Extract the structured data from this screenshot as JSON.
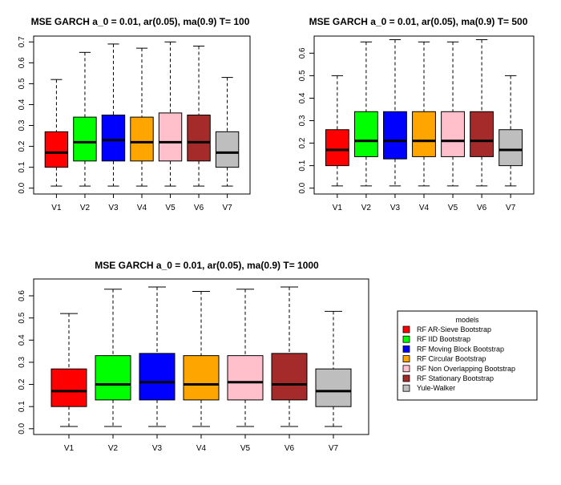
{
  "colors": {
    "V1": "#ff0000",
    "V2": "#00ff00",
    "V3": "#0000ff",
    "V4": "#ffa500",
    "V5": "#ffc0cb",
    "V6": "#a52a2a",
    "V7": "#bebebe"
  },
  "legend": {
    "title": "models",
    "placement": "right-middle",
    "items": [
      {
        "label": "RF AR-Sieve Bootstrap",
        "color": "#ff0000"
      },
      {
        "label": "RF IID Bootstrap",
        "color": "#00ff00"
      },
      {
        "label": "RF Moving Block Bootstrap",
        "color": "#0000ff"
      },
      {
        "label": "RF Circular Bootstrap",
        "color": "#ffa500"
      },
      {
        "label": "RF Non Overlapping Bootstrap",
        "color": "#ffc0cb"
      },
      {
        "label": "RF Stationary Bootstrap",
        "color": "#a52a2a"
      },
      {
        "label": "Yule-Walker",
        "color": "#bebebe"
      }
    ]
  },
  "chart_data": [
    {
      "type": "boxplot",
      "title": "MSE GARCH a_0 = 0.01, ar(0.05), ma(0.9)  T= 100",
      "categories": [
        "V1",
        "V2",
        "V3",
        "V4",
        "V5",
        "V6",
        "V7"
      ],
      "ylim": [
        0,
        0.7
      ],
      "yticks": [
        "0.0",
        "0.1",
        "0.2",
        "0.3",
        "0.4",
        "0.5",
        "0.6",
        "0.7"
      ],
      "boxes": [
        {
          "min": 0.01,
          "q1": 0.1,
          "median": 0.17,
          "q3": 0.27,
          "max": 0.52
        },
        {
          "min": 0.01,
          "q1": 0.13,
          "median": 0.22,
          "q3": 0.34,
          "max": 0.65
        },
        {
          "min": 0.01,
          "q1": 0.13,
          "median": 0.23,
          "q3": 0.35,
          "max": 0.69
        },
        {
          "min": 0.01,
          "q1": 0.13,
          "median": 0.22,
          "q3": 0.34,
          "max": 0.67
        },
        {
          "min": 0.01,
          "q1": 0.13,
          "median": 0.22,
          "q3": 0.36,
          "max": 0.7
        },
        {
          "min": 0.01,
          "q1": 0.13,
          "median": 0.22,
          "q3": 0.35,
          "max": 0.68
        },
        {
          "min": 0.01,
          "q1": 0.1,
          "median": 0.17,
          "q3": 0.27,
          "max": 0.53
        }
      ]
    },
    {
      "type": "boxplot",
      "title": "MSE GARCH a_0 = 0.01, ar(0.05), ma(0.9)  T= 500",
      "categories": [
        "V1",
        "V2",
        "V3",
        "V4",
        "V5",
        "V6",
        "V7"
      ],
      "ylim": [
        0,
        0.65
      ],
      "yticks": [
        "0.0",
        "0.1",
        "0.2",
        "0.3",
        "0.4",
        "0.5",
        "0.6"
      ],
      "boxes": [
        {
          "min": 0.01,
          "q1": 0.1,
          "median": 0.17,
          "q3": 0.26,
          "max": 0.5
        },
        {
          "min": 0.01,
          "q1": 0.14,
          "median": 0.21,
          "q3": 0.34,
          "max": 0.65
        },
        {
          "min": 0.01,
          "q1": 0.13,
          "median": 0.21,
          "q3": 0.34,
          "max": 0.66
        },
        {
          "min": 0.01,
          "q1": 0.14,
          "median": 0.21,
          "q3": 0.34,
          "max": 0.65
        },
        {
          "min": 0.01,
          "q1": 0.14,
          "median": 0.21,
          "q3": 0.34,
          "max": 0.65
        },
        {
          "min": 0.01,
          "q1": 0.14,
          "median": 0.21,
          "q3": 0.34,
          "max": 0.66
        },
        {
          "min": 0.01,
          "q1": 0.1,
          "median": 0.17,
          "q3": 0.26,
          "max": 0.5
        }
      ]
    },
    {
      "type": "boxplot",
      "title": "MSE GARCH a_0 = 0.01, ar(0.05), ma(0.9)  T= 1000",
      "categories": [
        "V1",
        "V2",
        "V3",
        "V4",
        "V5",
        "V6",
        "V7"
      ],
      "ylim": [
        0,
        0.65
      ],
      "yticks": [
        "0.0",
        "0.1",
        "0.2",
        "0.3",
        "0.4",
        "0.5",
        "0.6"
      ],
      "boxes": [
        {
          "min": 0.01,
          "q1": 0.1,
          "median": 0.17,
          "q3": 0.27,
          "max": 0.52
        },
        {
          "min": 0.01,
          "q1": 0.13,
          "median": 0.2,
          "q3": 0.33,
          "max": 0.63
        },
        {
          "min": 0.01,
          "q1": 0.13,
          "median": 0.21,
          "q3": 0.34,
          "max": 0.64
        },
        {
          "min": 0.01,
          "q1": 0.13,
          "median": 0.2,
          "q3": 0.33,
          "max": 0.62
        },
        {
          "min": 0.01,
          "q1": 0.13,
          "median": 0.21,
          "q3": 0.33,
          "max": 0.63
        },
        {
          "min": 0.01,
          "q1": 0.13,
          "median": 0.2,
          "q3": 0.34,
          "max": 0.64
        },
        {
          "min": 0.01,
          "q1": 0.1,
          "median": 0.17,
          "q3": 0.27,
          "max": 0.53
        }
      ]
    }
  ]
}
